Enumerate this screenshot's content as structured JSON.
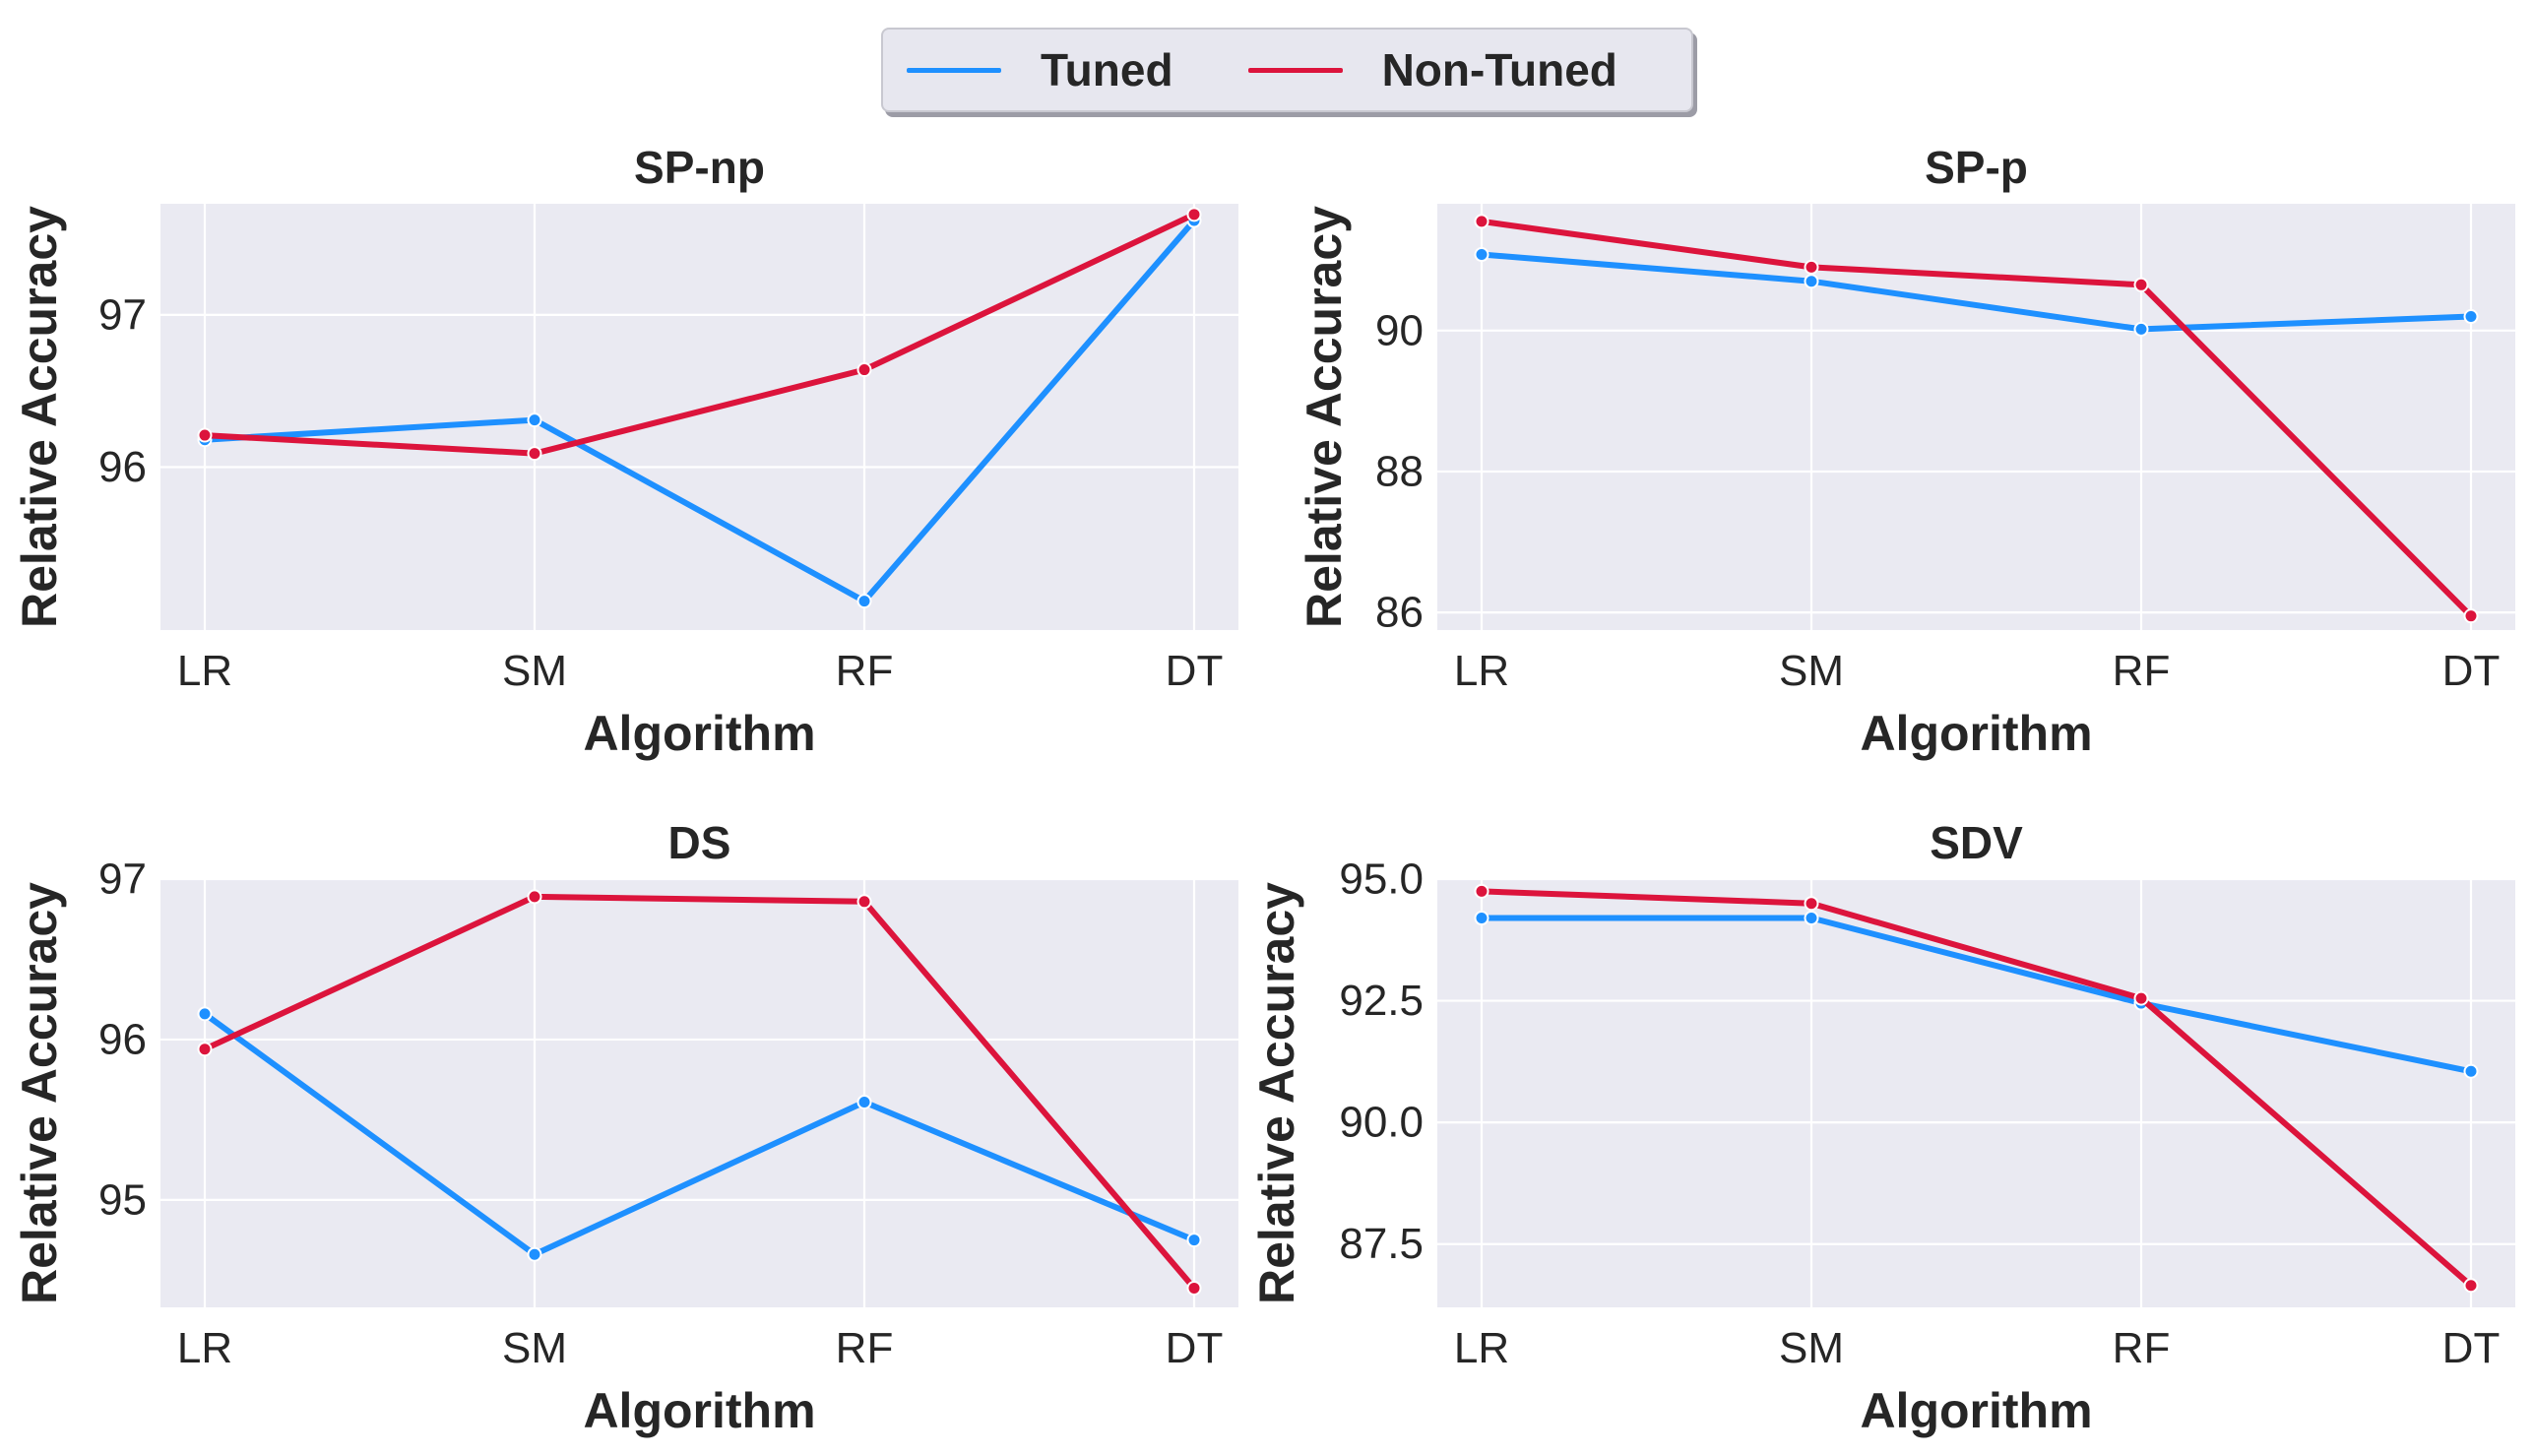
{
  "legend": {
    "items": [
      {
        "label": "Tuned",
        "color": "#1E90FF"
      },
      {
        "label": "Non-Tuned",
        "color": "#DC143C"
      }
    ]
  },
  "colors": {
    "panel_bg": "#EAEAF2",
    "grid": "#FFFFFF",
    "text": "#262626"
  },
  "chart_data": [
    {
      "type": "line",
      "title": "SP-np",
      "xlabel": "Algorithm",
      "ylabel": "Relative Accuracy",
      "categories": [
        "LR",
        "SM",
        "RF",
        "DT"
      ],
      "ylim": [
        94.93,
        97.73
      ],
      "yticks": [
        96,
        97
      ],
      "ytick_labels": [
        "96",
        "97"
      ],
      "series": [
        {
          "name": "Tuned",
          "values": [
            96.18,
            96.31,
            95.12,
            97.62
          ]
        },
        {
          "name": "Non-Tuned",
          "values": [
            96.21,
            96.09,
            96.64,
            97.66
          ]
        }
      ]
    },
    {
      "type": "line",
      "title": "SP-p",
      "xlabel": "Algorithm",
      "ylabel": "Relative Accuracy",
      "categories": [
        "LR",
        "SM",
        "RF",
        "DT"
      ],
      "ylim": [
        85.75,
        91.8
      ],
      "yticks": [
        86,
        88,
        90
      ],
      "ytick_labels": [
        "86",
        "88",
        "90"
      ],
      "series": [
        {
          "name": "Tuned",
          "values": [
            91.08,
            90.7,
            90.02,
            90.2
          ]
        },
        {
          "name": "Non-Tuned",
          "values": [
            91.55,
            90.9,
            90.65,
            85.95
          ]
        }
      ]
    },
    {
      "type": "line",
      "title": "DS",
      "xlabel": "Algorithm",
      "ylabel": "Relative Accuracy",
      "categories": [
        "LR",
        "SM",
        "RF",
        "DT"
      ],
      "ylim": [
        94.33,
        97.0
      ],
      "yticks": [
        95,
        96,
        97
      ],
      "ytick_labels": [
        "95",
        "96",
        "97"
      ],
      "series": [
        {
          "name": "Tuned",
          "values": [
            96.16,
            94.66,
            95.61,
            94.75
          ]
        },
        {
          "name": "Non-Tuned",
          "values": [
            95.94,
            96.89,
            96.86,
            94.45
          ]
        }
      ]
    },
    {
      "type": "line",
      "title": "SDV",
      "xlabel": "Algorithm",
      "ylabel": "Relative Accuracy",
      "categories": [
        "LR",
        "SM",
        "RF",
        "DT"
      ],
      "ylim": [
        86.2,
        95.0
      ],
      "yticks": [
        87.5,
        90.0,
        92.5,
        95.0
      ],
      "ytick_labels": [
        "87.5",
        "90.0",
        "92.5",
        "95.0"
      ],
      "series": [
        {
          "name": "Tuned",
          "values": [
            94.2,
            94.2,
            92.45,
            91.05
          ]
        },
        {
          "name": "Non-Tuned",
          "values": [
            94.75,
            94.5,
            92.55,
            86.65
          ]
        }
      ]
    }
  ]
}
